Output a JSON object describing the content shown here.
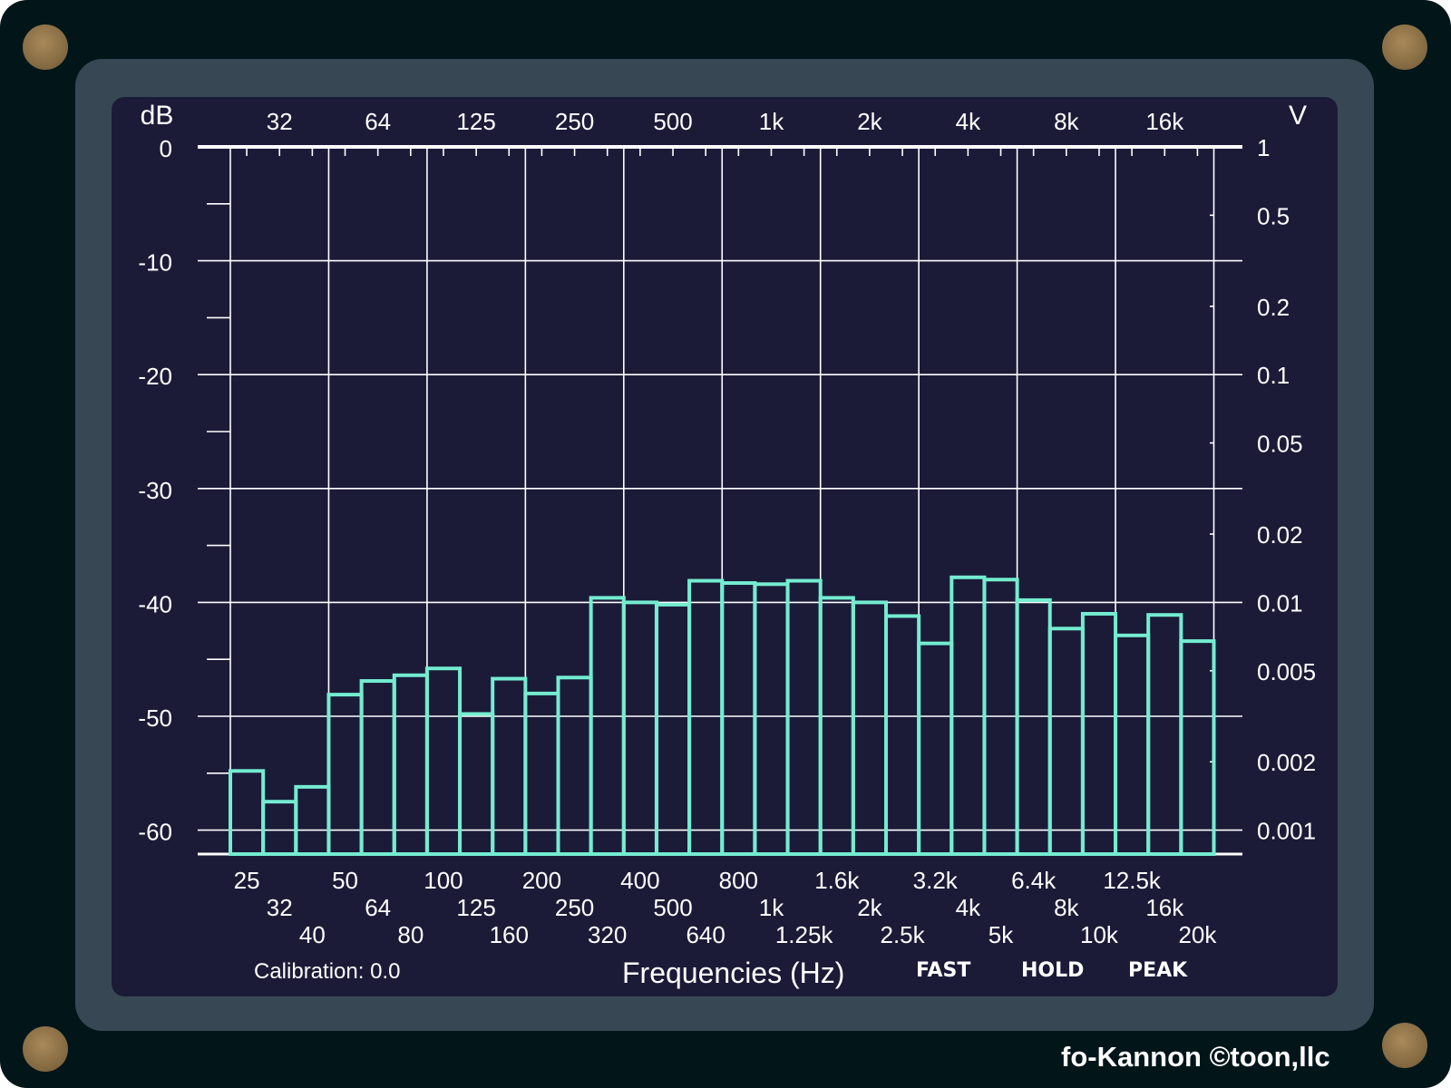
{
  "chart_data": {
    "type": "bar",
    "title": "",
    "xlabel": "Frequencies (Hz)",
    "ylabel_left": "dB",
    "ylabel_right": "V",
    "categories": [
      "25",
      "32",
      "40",
      "50",
      "64",
      "80",
      "100",
      "125",
      "160",
      "200",
      "250",
      "320",
      "400",
      "500",
      "640",
      "800",
      "1k",
      "1.25k",
      "1.6k",
      "2k",
      "2.5k",
      "3.2k",
      "4k",
      "5k",
      "6.4k",
      "8k",
      "10k",
      "12.5k",
      "16k",
      "20k"
    ],
    "values": [
      -54.8,
      -57.5,
      -56.2,
      -48.1,
      -46.9,
      -46.4,
      -45.8,
      -49.8,
      -46.7,
      -48.0,
      -46.6,
      -39.6,
      -40.0,
      -40.2,
      -38.1,
      -38.3,
      -38.4,
      -38.1,
      -39.6,
      -40.0,
      -41.2,
      -43.6,
      -37.8,
      -38.0,
      -39.8,
      -42.3,
      -41.0,
      -42.9,
      -41.1,
      -43.4
    ],
    "ylim": [
      -62.3,
      0
    ],
    "y_ticks_left": [
      "0",
      "-10",
      "-20",
      "-30",
      "-40",
      "-50",
      "-60"
    ],
    "y_ticks_right": [
      {
        "label": "1",
        "db": 0
      },
      {
        "label": "0.5",
        "db": -6
      },
      {
        "label": "0.2",
        "db": -14
      },
      {
        "label": "0.1",
        "db": -20
      },
      {
        "label": "0.05",
        "db": -26
      },
      {
        "label": "0.02",
        "db": -34
      },
      {
        "label": "0.01",
        "db": -40
      },
      {
        "label": "0.005",
        "db": -46
      },
      {
        "label": "0.002",
        "db": -54
      },
      {
        "label": "0.001",
        "db": -60
      }
    ],
    "top_labels": [
      "32",
      "64",
      "125",
      "250",
      "500",
      "1k",
      "2k",
      "4k",
      "8k",
      "16k"
    ],
    "grid": true,
    "bar_color": "#74ecd0"
  },
  "footer": {
    "calibration": "Calibration: 0.0",
    "frequencies_label": "Frequencies (Hz)",
    "fast": "FAST",
    "hold": "HOLD",
    "peak": "PEAK"
  },
  "brand": "fo-Kannon  ©toon,llc"
}
